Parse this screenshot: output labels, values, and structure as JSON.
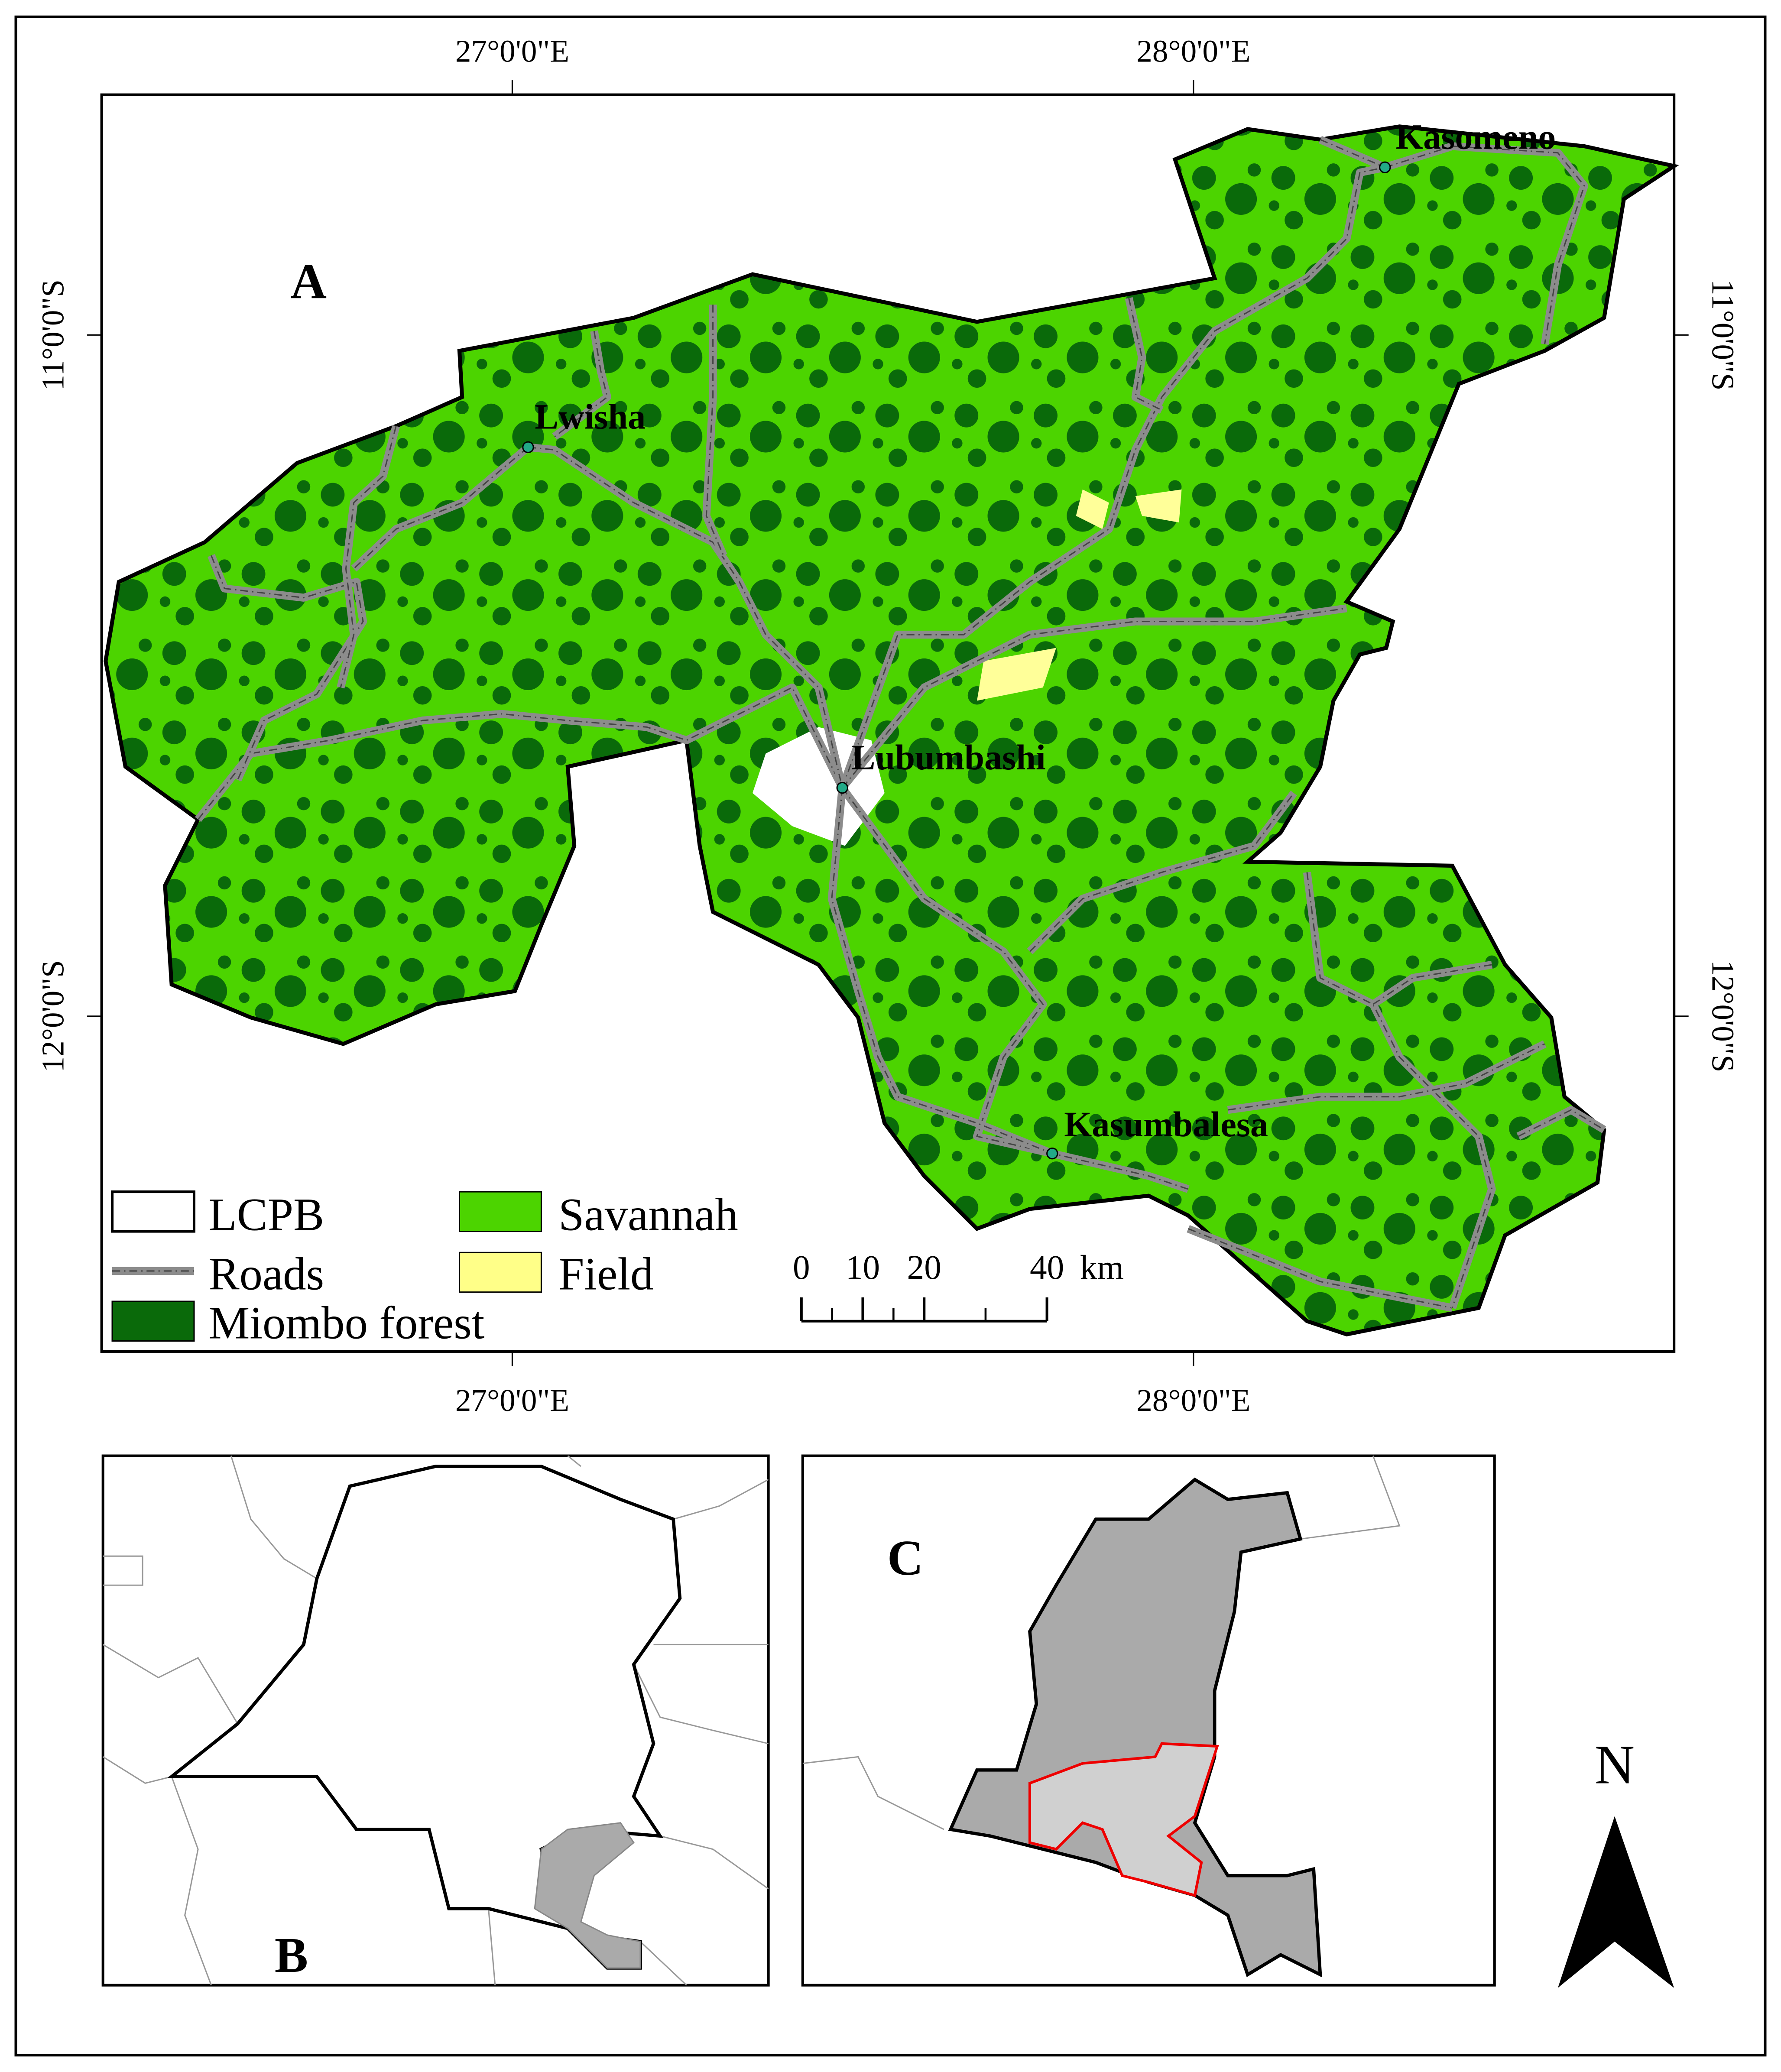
{
  "map_a": {
    "label": "A",
    "graticule": {
      "top": [
        "27°0'0\"E",
        "28°0'0\"E"
      ],
      "bottom": [
        "27°0'0\"E",
        "28°0'0\"E"
      ],
      "left": [
        "11°0'0\"S",
        "12°0'0\"S"
      ],
      "right": [
        "11°0'0\"S",
        "12°0'0\"S"
      ]
    },
    "places": [
      "Lwisha",
      "Lubumbashi",
      "Kasomeno",
      "Kasumbalesa"
    ],
    "legend": [
      "LCPB",
      "Roads",
      "Miombo forest",
      "Savannah",
      "Field"
    ],
    "scale_bar": {
      "ticks": [
        0,
        10,
        20,
        40
      ],
      "unit": "km"
    }
  },
  "map_b": {
    "label": "B"
  },
  "map_c": {
    "label": "C"
  },
  "north_arrow": {
    "label": "N"
  }
}
